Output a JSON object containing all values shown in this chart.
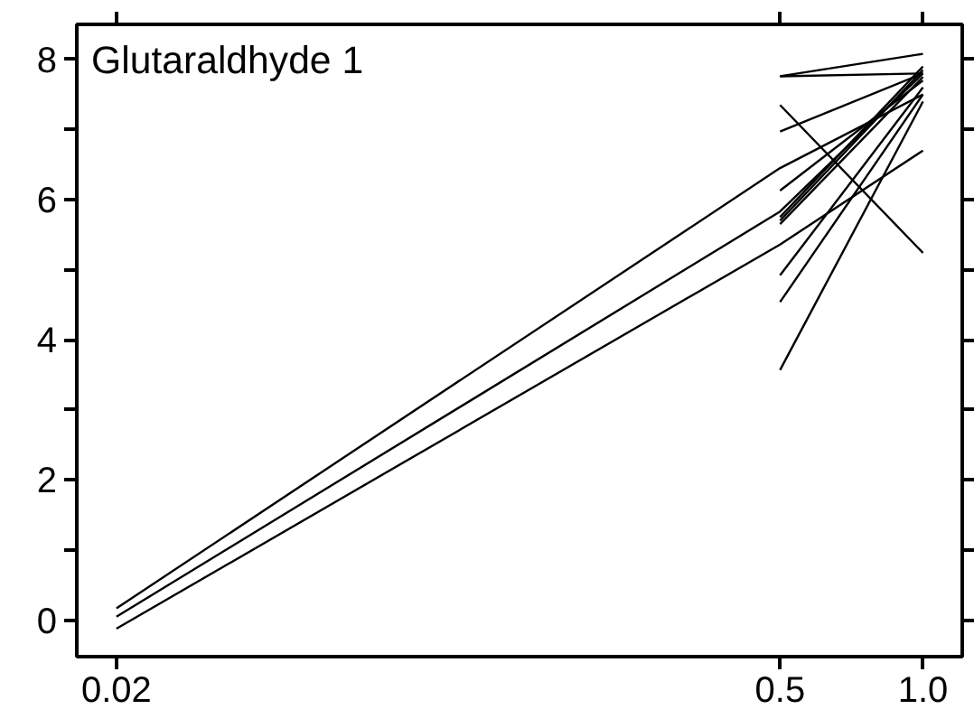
{
  "chart_data": {
    "type": "line",
    "title": "Glutaraldhyde 1",
    "log": "x",
    "xlim": [
      0.0165,
      1.21
    ],
    "ylim": [
      -0.52,
      8.5
    ],
    "xticks": [
      0.02,
      0.5,
      {
        "value": 1.0,
        "label": "1.0"
      }
    ],
    "yticks": [
      0,
      {
        "value": 1,
        "label": null
      },
      2,
      {
        "value": 3,
        "label": null
      },
      4,
      {
        "value": 5,
        "label": null
      },
      6,
      {
        "value": 7,
        "label": null
      },
      8
    ],
    "grid": false,
    "marker": "none",
    "line_style": "solid",
    "series": [
      {
        "color": "#000000",
        "x": [
          0.02,
          0.5,
          1.0
        ],
        "values": [
          0.17,
          6.45,
          7.5
        ]
      },
      {
        "color": "#000000",
        "x": [
          0.02,
          0.5,
          1.0
        ],
        "values": [
          0.05,
          5.83,
          7.8
        ]
      },
      {
        "color": "#000000",
        "x": [
          0.02,
          0.5,
          1.0
        ],
        "values": [
          -0.12,
          5.36,
          6.7
        ]
      },
      {
        "color": "#000000",
        "x": [
          0.5,
          1.0
        ],
        "values": [
          7.76,
          8.08
        ]
      },
      {
        "color": "#000000",
        "x": [
          0.5,
          1.0
        ],
        "values": [
          7.76,
          7.8
        ]
      },
      {
        "color": "#000000",
        "x": [
          0.5,
          1.0
        ],
        "values": [
          7.35,
          5.24
        ]
      },
      {
        "color": "#000000",
        "x": [
          0.5,
          1.0
        ],
        "values": [
          6.97,
          7.8
        ]
      },
      {
        "color": "#000000",
        "x": [
          0.5,
          1.0
        ],
        "values": [
          6.13,
          7.7
        ]
      },
      {
        "color": "#000000",
        "x": [
          0.5,
          1.0
        ],
        "values": [
          5.75,
          7.9
        ]
      },
      {
        "color": "#000000",
        "x": [
          0.5,
          1.0
        ],
        "values": [
          5.7,
          7.85
        ]
      },
      {
        "color": "#000000",
        "x": [
          0.5,
          1.0
        ],
        "values": [
          5.65,
          7.75
        ]
      },
      {
        "color": "#000000",
        "x": [
          0.5,
          1.0
        ],
        "values": [
          4.92,
          7.6
        ]
      },
      {
        "color": "#000000",
        "x": [
          0.5,
          1.0
        ],
        "values": [
          4.54,
          7.5
        ]
      },
      {
        "color": "#000000",
        "x": [
          0.5,
          1.0
        ],
        "values": [
          3.57,
          7.4
        ]
      }
    ]
  }
}
